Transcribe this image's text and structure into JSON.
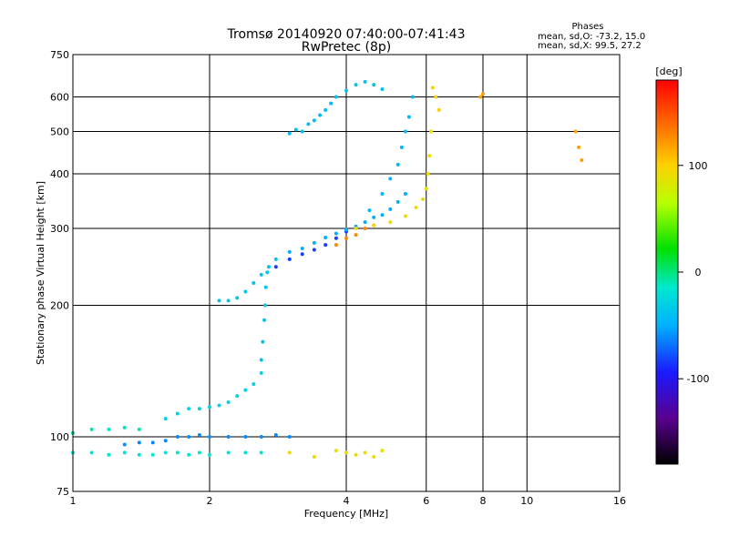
{
  "chart_data": {
    "type": "scatter",
    "title": "Tromsø 20140920 07:40:00-07:41:43",
    "subtitle": "RwPretec (8p)",
    "phases": {
      "heading": "Phases",
      "line1": "mean, sd,O: -73.2, 15.0",
      "line2": "mean, sd,X:  99.5, 27.2"
    },
    "xlabel": "Frequency [MHz]",
    "ylabel": "Stationary phase Virtual Height [km]",
    "x_scale": "log",
    "y_scale": "log",
    "xlim": [
      1,
      16
    ],
    "ylim": [
      75,
      750
    ],
    "x_ticks": [
      1,
      2,
      4,
      6,
      8,
      10,
      16
    ],
    "y_ticks": [
      75,
      100,
      200,
      300,
      400,
      500,
      600,
      750
    ],
    "grid": true,
    "colorbar": {
      "label": "[deg]",
      "range": [
        -180,
        180
      ],
      "ticks": [
        100,
        0,
        -100
      ]
    },
    "traces": [
      {
        "x": [
          1.0,
          1.1,
          1.2,
          1.3,
          1.4,
          1.5,
          1.6,
          1.7,
          1.8,
          1.9,
          2.0,
          2.2,
          2.4,
          2.6
        ],
        "y": [
          92,
          92,
          91,
          92,
          91,
          91,
          92,
          92,
          91,
          92,
          91,
          92,
          92,
          92
        ],
        "phase": -20
      },
      {
        "x": [
          1.0,
          1.1,
          1.2,
          1.3,
          1.4
        ],
        "y": [
          102,
          104,
          104,
          105,
          104
        ],
        "phase": -15
      },
      {
        "x": [
          1.3,
          1.4,
          1.5,
          1.6,
          1.7,
          1.8,
          1.9,
          2.0,
          2.2,
          2.4,
          2.6,
          2.8,
          3.0
        ],
        "y": [
          96,
          97,
          97,
          98,
          100,
          100,
          101,
          100,
          100,
          100,
          100,
          101,
          100
        ],
        "phase": -70
      },
      {
        "x": [
          1.6,
          1.7,
          1.8,
          1.9,
          2.0,
          2.1,
          2.2,
          2.3,
          2.4,
          2.5,
          2.6
        ],
        "y": [
          110,
          113,
          116,
          116,
          117,
          118,
          120,
          124,
          128,
          132,
          140
        ],
        "phase": -35
      },
      {
        "x": [
          2.6,
          2.62,
          2.64,
          2.65,
          2.66,
          2.68
        ],
        "y": [
          150,
          165,
          185,
          200,
          220,
          238
        ],
        "phase": -45
      },
      {
        "x": [
          2.1,
          2.2,
          2.3,
          2.4,
          2.5,
          2.6,
          2.7,
          2.8
        ],
        "y": [
          205,
          205,
          208,
          215,
          225,
          235,
          245,
          255
        ],
        "phase": -45
      },
      {
        "x": [
          2.8,
          3.0,
          3.2,
          3.4,
          3.6,
          3.8,
          4.0
        ],
        "y": [
          245,
          255,
          262,
          268,
          275,
          285,
          295
        ],
        "phase": -90
      },
      {
        "x": [
          3.0,
          3.2,
          3.4,
          3.6,
          3.8,
          4.0,
          4.2,
          4.4,
          4.6,
          4.8,
          5.0,
          5.2,
          5.4
        ],
        "y": [
          265,
          270,
          278,
          286,
          292,
          298,
          303,
          310,
          318,
          322,
          332,
          345,
          360
        ],
        "phase": -60
      },
      {
        "x": [
          3.8,
          4.0,
          4.2,
          4.4,
          4.6
        ],
        "y": [
          275,
          285,
          290,
          300,
          305
        ],
        "phase": 130
      },
      {
        "x": [
          4.2,
          4.6,
          5.0,
          5.4,
          5.7,
          5.9,
          6.0,
          6.05,
          6.1,
          6.15
        ],
        "y": [
          300,
          305,
          310,
          320,
          335,
          350,
          370,
          400,
          440,
          500
        ],
        "phase": 90
      },
      {
        "x": [
          4.5,
          4.8,
          5.0,
          5.2,
          5.3,
          5.4,
          5.5,
          5.6
        ],
        "y": [
          330,
          360,
          390,
          420,
          460,
          500,
          540,
          600
        ],
        "phase": -55
      },
      {
        "x": [
          3.0,
          3.1,
          3.2,
          3.3,
          3.4,
          3.5,
          3.6,
          3.7,
          3.8
        ],
        "y": [
          495,
          505,
          500,
          520,
          530,
          545,
          560,
          580,
          600
        ],
        "phase": -50
      },
      {
        "x": [
          3.8,
          4.0,
          4.2,
          4.4,
          4.6,
          4.8
        ],
        "y": [
          600,
          620,
          640,
          650,
          640,
          625
        ],
        "phase": -45
      },
      {
        "x": [
          3.0,
          3.4,
          3.8,
          4.0,
          4.2,
          4.4,
          4.6,
          4.8
        ],
        "y": [
          92,
          90,
          93,
          92,
          91,
          92,
          90,
          93
        ],
        "phase": 90
      },
      {
        "x": [
          6.2,
          6.3,
          6.4
        ],
        "y": [
          630,
          600,
          560
        ],
        "phase": 100
      },
      {
        "x": [
          7.9,
          8.0,
          12.8,
          13.0,
          13.2
        ],
        "y": [
          600,
          610,
          500,
          460,
          430
        ],
        "phase": 120
      }
    ]
  }
}
